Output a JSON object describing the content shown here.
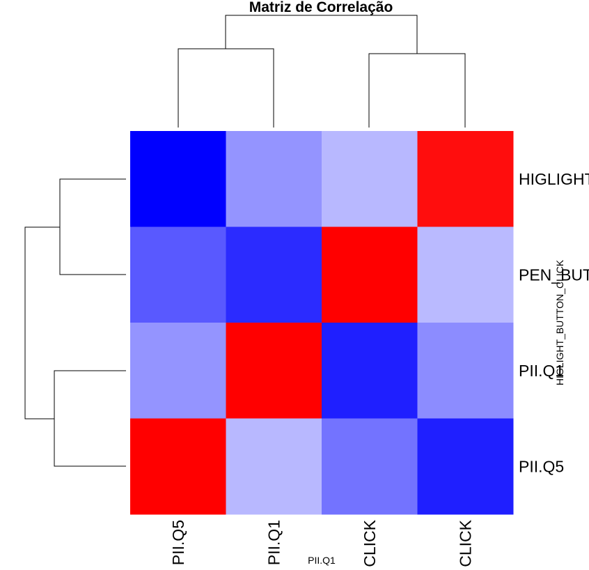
{
  "chart_data": {
    "type": "heatmap",
    "title": "Matriz de Correlação",
    "xlabel": "PII.Q1",
    "ylabel": "HIGLIGHT_BUTTON_CLICK",
    "row_labels": [
      "HIGLIGHT_BUTTON_CLICK",
      "PEN_BUTTON_CLICK",
      "PII.Q1",
      "PII.Q5"
    ],
    "col_labels": [
      "PII.Q5",
      "PII.Q1",
      "CLICK",
      "CLICK"
    ],
    "values": [
      [
        -1.0,
        -0.42,
        -0.28,
        0.95
      ],
      [
        -0.65,
        -0.83,
        1.0,
        -0.27
      ],
      [
        -0.42,
        1.0,
        -0.88,
        -0.45
      ],
      [
        1.0,
        -0.28,
        -0.55,
        -0.88
      ]
    ],
    "color_scale": {
      "low": "#0000ff",
      "mid": "#ffffff",
      "high": "#ff0000"
    },
    "row_dendrogram": true,
    "col_dendrogram": true
  }
}
